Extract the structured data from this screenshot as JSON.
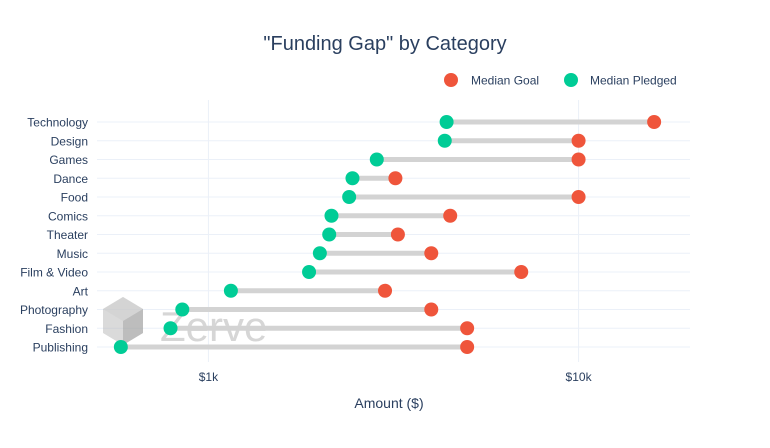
{
  "chart_data": {
    "type": "dumbbell",
    "title": "\"Funding Gap\" by Category",
    "xlabel": "Amount ($)",
    "ylabel": "",
    "x_scale": "log",
    "xlim": [
      500,
      20000
    ],
    "x_ticks": [
      {
        "value": 1000,
        "label": "$1k"
      },
      {
        "value": 10000,
        "label": "$10k"
      }
    ],
    "grid": true,
    "legend_position": "top-right",
    "categories": [
      "Technology",
      "Design",
      "Games",
      "Dance",
      "Food",
      "Comics",
      "Theater",
      "Music",
      "Film & Video",
      "Art",
      "Photography",
      "Fashion",
      "Publishing"
    ],
    "series": [
      {
        "name": "Median Goal",
        "color": "#EF553B",
        "values": [
          16000,
          10000,
          10000,
          3200,
          10000,
          4500,
          3250,
          4000,
          7000,
          3000,
          4000,
          5000,
          5000
        ]
      },
      {
        "name": "Median Pledged",
        "color": "#00CC96",
        "values": [
          4400,
          4350,
          2850,
          2450,
          2400,
          2150,
          2120,
          2000,
          1870,
          1150,
          850,
          790,
          580
        ]
      }
    ],
    "connector_color": "#d3d3d3"
  },
  "watermark": {
    "text": "Zerve",
    "icon": "hexagon-cube-logo-icon"
  }
}
